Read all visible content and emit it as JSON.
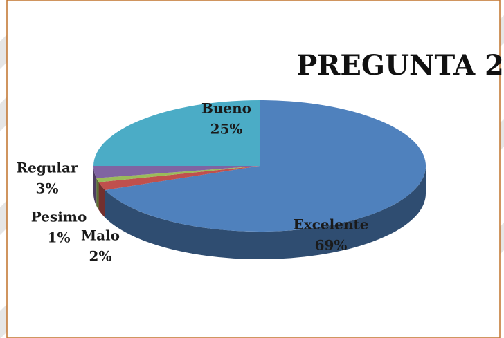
{
  "chart_data": {
    "type": "pie3d",
    "title": "PREGUNTA 2",
    "categories": [
      "Excelente",
      "Malo",
      "Pesimo",
      "Regular",
      "Bueno"
    ],
    "values": [
      69,
      2,
      1,
      3,
      25
    ],
    "value_labels": [
      "69%",
      "2%",
      "1%",
      "3%",
      "25%"
    ],
    "colors": [
      "#4f81bd",
      "#c0504d",
      "#9bbb59",
      "#8064a2",
      "#4bacc6"
    ]
  }
}
